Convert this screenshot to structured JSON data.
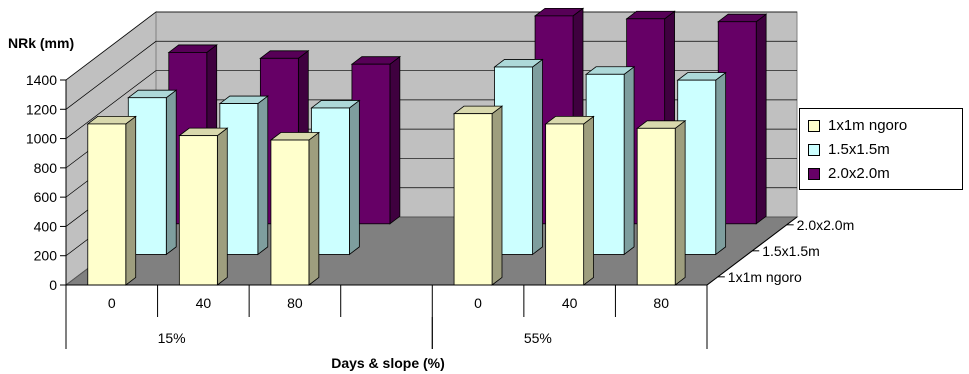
{
  "chart_data": {
    "type": "bar",
    "title": "",
    "ylabel": "NRk (mm)",
    "xlabel": "Days & slope (%)",
    "ylim": [
      0,
      1400
    ],
    "yticks": [
      0,
      200,
      400,
      600,
      800,
      1000,
      1200,
      1400
    ],
    "categories": [
      "0",
      "40",
      "80",
      "0",
      "40",
      "80"
    ],
    "groups": [
      {
        "label": "15%",
        "categories": [
          "0",
          "40",
          "80"
        ]
      },
      {
        "label": "55%",
        "categories": [
          "0",
          "40",
          "80"
        ]
      }
    ],
    "depth_labels": [
      "2.0x2.0m",
      "1.5x1.5m",
      "1x1m ngoro"
    ],
    "series": [
      {
        "name": "1x1m ngoro",
        "color": "#FFFFCC",
        "values": [
          1100,
          1020,
          990,
          1170,
          1100,
          1070
        ]
      },
      {
        "name": "1.5x1.5m",
        "color": "#CCFFFF",
        "values": [
          1070,
          1030,
          1000,
          1280,
          1230,
          1190
        ]
      },
      {
        "name": "2.0x2.0m",
        "color": "#660066",
        "values": [
          1170,
          1130,
          1090,
          1420,
          1400,
          1380
        ]
      }
    ],
    "grid": true,
    "legend": "right"
  }
}
